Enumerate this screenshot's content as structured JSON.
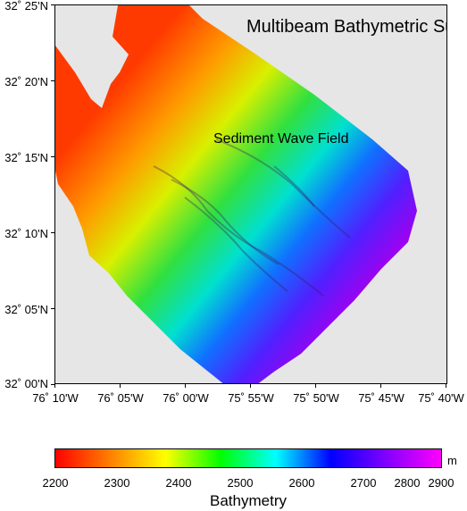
{
  "map": {
    "title": "Multibeam Bathymetric Survey",
    "annotation": "Sediment Wave Field",
    "lat_labels": [
      "32˚ 25'N",
      "32˚ 20'N",
      "32˚ 15'N",
      "32˚ 10'N",
      "32˚ 05'N",
      "32˚ 00'N"
    ],
    "lon_labels": [
      "76˚ 10'W",
      "76˚ 05'W",
      "76˚ 00'W",
      "75˚ 55'W",
      "75˚ 50'W",
      "75˚ 45'W",
      "75˚ 40'W"
    ],
    "no_data_color": "#e6e6e6"
  },
  "colorbar": {
    "title": "Bathymetry",
    "unit": "m",
    "ticks": [
      "2200",
      "2300",
      "2400",
      "2500",
      "2600",
      "2700",
      "2800",
      "2900"
    ],
    "range": [
      2200,
      2900
    ],
    "colors": [
      "#ff0000",
      "#ff8000",
      "#ffff00",
      "#00ff00",
      "#00ffff",
      "#0000ff",
      "#8000ff",
      "#ff00ff"
    ]
  }
}
